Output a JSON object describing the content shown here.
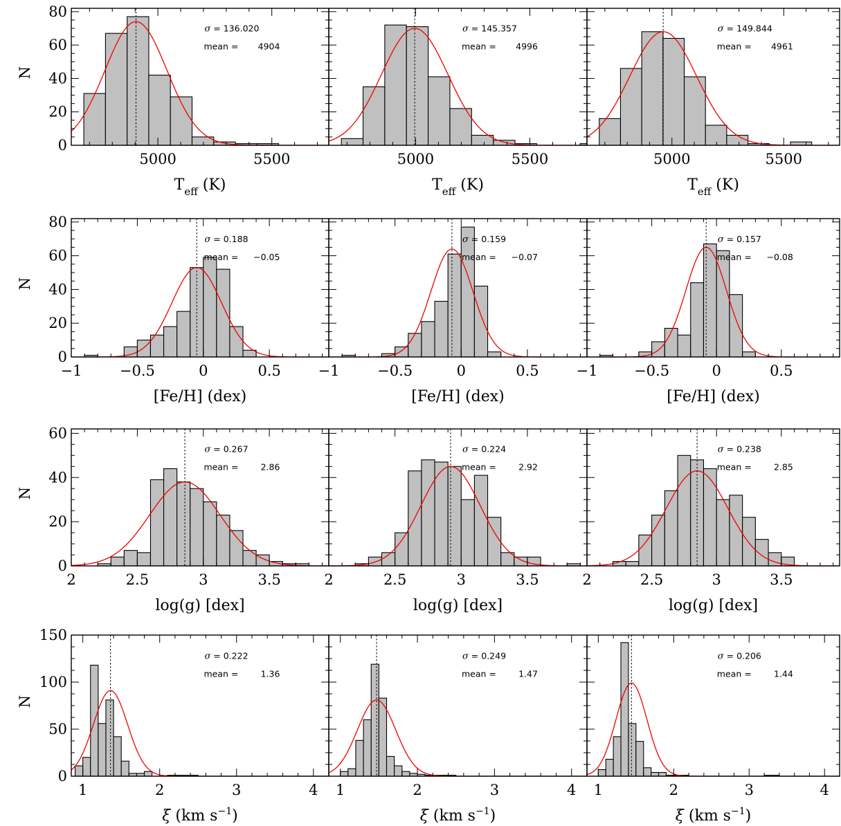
{
  "chart_data": {
    "type": "bar",
    "layout": "4x3 grid of histograms with Gaussian fits",
    "fit_color": "#ee0000",
    "bar_fill": "#c0c0c0",
    "rows": [
      {
        "ylabel": "N",
        "xlabel": "T",
        "xlabel_sub": "eff",
        "xlabel_unit": " (K)",
        "xlim": [
          4620,
          5750
        ],
        "ylim": [
          0,
          82
        ],
        "xticks": [
          5000,
          5500
        ],
        "xtick_labels": [
          "5000",
          "5500"
        ],
        "yticks": [
          0,
          20,
          40,
          60,
          80
        ],
        "ytick_labels": [
          "0",
          "20",
          "40",
          "60",
          "80"
        ],
        "panels": [
          {
            "sigma_label": "σ",
            "sigma_text": " =  136.020",
            "mean_label": "mean =",
            "mean_text": "4904",
            "sigma": 136.02,
            "mean": 4904,
            "amplitude": 74,
            "bin_edges": [
              4675,
              4770,
              4865,
              4960,
              5055,
              5150,
              5245,
              5340,
              5435,
              5530
            ],
            "counts": [
              31,
              67,
              77,
              42,
              29,
              5,
              2,
              1,
              1
            ]
          },
          {
            "sigma_label": "σ",
            "sigma_text": " =  145.357",
            "mean_label": "mean =",
            "mean_text": "4996",
            "sigma": 145.357,
            "mean": 4996,
            "amplitude": 70,
            "bin_edges": [
              4675,
              4770,
              4865,
              4960,
              5055,
              5150,
              5245,
              5340,
              5435,
              5530,
              5720,
              5750
            ],
            "counts": [
              4,
              35,
              72,
              71,
              41,
              22,
              6,
              3,
              1,
              0,
              1
            ]
          },
          {
            "sigma_label": "σ",
            "sigma_text": " =  149.844",
            "mean_label": "mean =",
            "mean_text": "4961",
            "sigma": 149.844,
            "mean": 4961,
            "amplitude": 68,
            "bin_edges": [
              4675,
              4770,
              4865,
              4960,
              5055,
              5150,
              5245,
              5340,
              5435,
              5530,
              5625
            ],
            "counts": [
              16,
              46,
              68,
              64,
              41,
              12,
              6,
              1,
              0,
              2
            ]
          }
        ]
      },
      {
        "ylabel": "N",
        "xlabel": "[Fe/H] (dex)",
        "xlim": [
          -1,
          0.95
        ],
        "ylim": [
          0,
          82
        ],
        "xticks": [
          -1,
          -0.5,
          0,
          0.5
        ],
        "xtick_labels": [
          "−1",
          "−0.5",
          "0",
          "0.5"
        ],
        "yticks": [
          0,
          20,
          40,
          60,
          80
        ],
        "ytick_labels": [
          "0",
          "20",
          "40",
          "60",
          "80"
        ],
        "panels": [
          {
            "sigma_label": "σ",
            "sigma_text": " =  0.188",
            "mean_label": "mean =",
            "mean_text": "−0.05",
            "sigma": 0.188,
            "mean": -0.05,
            "amplitude": 53,
            "bin_edges": [
              -0.9,
              -0.8,
              -0.7,
              -0.6,
              -0.5,
              -0.4,
              -0.3,
              -0.2,
              -0.1,
              0,
              0.1,
              0.2,
              0.3,
              0.4
            ],
            "counts": [
              1,
              0,
              0,
              6,
              10,
              13,
              18,
              27,
              53,
              59,
              52,
              18,
              4
            ]
          },
          {
            "sigma_label": "σ",
            "sigma_text": " =  0.159",
            "mean_label": "mean =",
            "mean_text": "−0.07",
            "sigma": 0.159,
            "mean": -0.07,
            "amplitude": 64,
            "bin_edges": [
              -0.9,
              -0.8,
              -0.7,
              -0.6,
              -0.5,
              -0.4,
              -0.3,
              -0.2,
              -0.1,
              0,
              0.1,
              0.2,
              0.3
            ],
            "counts": [
              1,
              0,
              0,
              2,
              6,
              14,
              21,
              33,
              61,
              77,
              42,
              3
            ]
          },
          {
            "sigma_label": "σ",
            "sigma_text": " =  0.157",
            "mean_label": "mean =",
            "mean_text": "−0.08",
            "sigma": 0.157,
            "mean": -0.08,
            "amplitude": 65,
            "bin_edges": [
              -0.9,
              -0.8,
              -0.7,
              -0.6,
              -0.5,
              -0.4,
              -0.3,
              -0.2,
              -0.1,
              0,
              0.1,
              0.2,
              0.3
            ],
            "counts": [
              1,
              0,
              0,
              3,
              9,
              17,
              13,
              44,
              67,
              63,
              37,
              3
            ]
          }
        ]
      },
      {
        "ylabel": "N",
        "xlabel": "log(g) [dex]",
        "xlim": [
          2,
          3.95
        ],
        "ylim": [
          0,
          62
        ],
        "xticks": [
          2,
          2.5,
          3,
          3.5
        ],
        "xtick_labels": [
          "2",
          "2.5",
          "3",
          "3.5"
        ],
        "yticks": [
          0,
          20,
          40,
          60
        ],
        "ytick_labels": [
          "0",
          "20",
          "40",
          "60"
        ],
        "panels": [
          {
            "sigma_label": "σ",
            "sigma_text": " =  0.267",
            "mean_label": "mean =",
            "mean_text": "2.86",
            "sigma": 0.267,
            "mean": 2.86,
            "amplitude": 38,
            "bin_edges": [
              2.2,
              2.3,
              2.4,
              2.5,
              2.6,
              2.7,
              2.8,
              2.9,
              3.0,
              3.1,
              3.2,
              3.3,
              3.4,
              3.5,
              3.6,
              3.7,
              3.8
            ],
            "counts": [
              1,
              4,
              7,
              6,
              39,
              44,
              38,
              35,
              29,
              23,
              16,
              7,
              5,
              2,
              1,
              1
            ]
          },
          {
            "sigma_label": "σ",
            "sigma_text": " =  0.224",
            "mean_label": "mean =",
            "mean_text": "2.92",
            "sigma": 0.224,
            "mean": 2.92,
            "amplitude": 45,
            "bin_edges": [
              2.2,
              2.3,
              2.4,
              2.5,
              2.6,
              2.7,
              2.8,
              2.9,
              3.0,
              3.1,
              3.2,
              3.3,
              3.4,
              3.5,
              3.6,
              3.8,
              3.9
            ],
            "counts": [
              1,
              4,
              6,
              15,
              43,
              48,
              47,
              45,
              30,
              41,
              22,
              6,
              4,
              4,
              0,
              1
            ]
          },
          {
            "sigma_label": "σ",
            "sigma_text": " =  0.238",
            "mean_label": "mean =",
            "mean_text": "2.85",
            "sigma": 0.238,
            "mean": 2.85,
            "amplitude": 43,
            "bin_edges": [
              2.2,
              2.3,
              2.4,
              2.5,
              2.6,
              2.7,
              2.8,
              2.9,
              3.0,
              3.1,
              3.2,
              3.3,
              3.4,
              3.5,
              3.6,
              3.8
            ],
            "counts": [
              2,
              2,
              14,
              23,
              34,
              50,
              48,
              44,
              30,
              32,
              22,
              12,
              6,
              4,
              0
            ]
          }
        ]
      },
      {
        "ylabel": "N",
        "xlabel": "ξ",
        "xlabel_unit": "  (km s",
        "xlabel_sup": "−1",
        "xlabel_close": ")",
        "xlim": [
          0.85,
          4.2
        ],
        "ylim": [
          0,
          150
        ],
        "xticks": [
          1,
          2,
          3,
          4
        ],
        "xtick_labels": [
          "1",
          "2",
          "3",
          "4"
        ],
        "yticks": [
          0,
          50,
          100,
          150
        ],
        "ytick_labels": [
          "0",
          "50",
          "100",
          "150"
        ],
        "panels": [
          {
            "sigma_label": "σ",
            "sigma_text": " =  0.222",
            "mean_label": "mean =",
            "mean_text": "1.36",
            "sigma": 0.222,
            "mean": 1.36,
            "amplitude": 91,
            "bin_edges": [
              0.9,
              1.0,
              1.1,
              1.2,
              1.3,
              1.4,
              1.5,
              1.6,
              1.7,
              1.8,
              1.9,
              2.0,
              2.1,
              2.5,
              2.9
            ],
            "counts": [
              11,
              20,
              118,
              56,
              81,
              42,
              16,
              3,
              3,
              5,
              0,
              0,
              1,
              0
            ]
          },
          {
            "sigma_label": "σ",
            "sigma_text": " =  0.249",
            "mean_label": "mean =",
            "mean_text": "1.47",
            "sigma": 0.249,
            "mean": 1.47,
            "amplitude": 81,
            "bin_edges": [
              1.0,
              1.1,
              1.2,
              1.3,
              1.4,
              1.5,
              1.6,
              1.7,
              1.8,
              1.9,
              2.0,
              2.1,
              2.3,
              2.5
            ],
            "counts": [
              5,
              8,
              38,
              60,
              119,
              83,
              21,
              11,
              5,
              3,
              2,
              1,
              1
            ]
          },
          {
            "sigma_label": "σ",
            "sigma_text": " =  0.206",
            "mean_label": "mean =",
            "mean_text": "1.44",
            "sigma": 0.206,
            "mean": 1.44,
            "amplitude": 99,
            "bin_edges": [
              1.0,
              1.1,
              1.2,
              1.3,
              1.4,
              1.5,
              1.6,
              1.7,
              1.8,
              1.9,
              2.0,
              2.2,
              3.2,
              3.4
            ],
            "counts": [
              7,
              18,
              42,
              142,
              56,
              37,
              9,
              4,
              4,
              1,
              1,
              0,
              1
            ]
          }
        ]
      }
    ]
  }
}
